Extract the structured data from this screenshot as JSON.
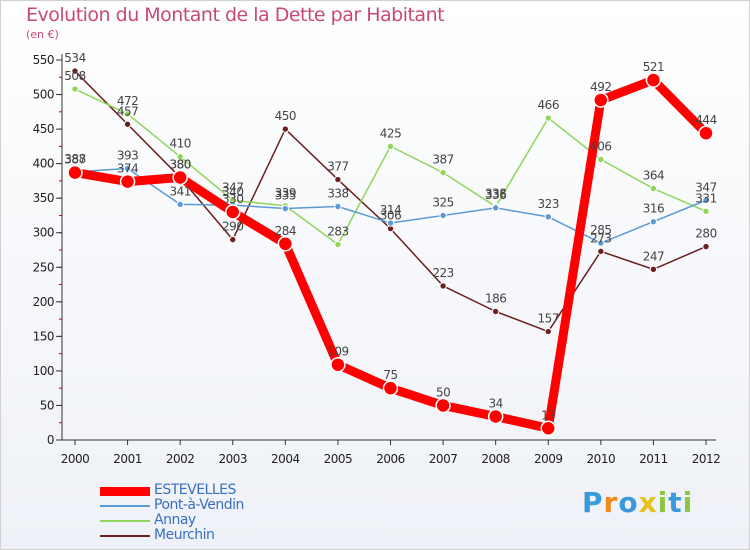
{
  "title": "Evolution du Montant de la Dette par Habitant",
  "unit": "(en €)",
  "logo": {
    "letters": [
      "P",
      "r",
      "o",
      "x",
      "i",
      "t",
      "i"
    ],
    "colors": [
      "#3a9ad9",
      "#f08a1c",
      "#3a9ad9",
      "#e8c21c",
      "#8cc63f",
      "#3a9ad9",
      "#8cc63f"
    ]
  },
  "chart_data": {
    "type": "line",
    "x": [
      "2000",
      "2001",
      "2002",
      "2003",
      "2004",
      "2005",
      "2006",
      "2007",
      "2008",
      "2009",
      "2010",
      "2011",
      "2012"
    ],
    "yticks": [
      "0",
      "50",
      "100",
      "150",
      "200",
      "250",
      "300",
      "350",
      "400",
      "450",
      "500",
      "550"
    ],
    "ylim": [
      0,
      550
    ],
    "grid": false,
    "legend_position": "bottom-left",
    "series": [
      {
        "name": "Meurchin",
        "color": "#6b1f1f",
        "values": [
          534,
          457,
          380,
          290,
          450,
          377,
          306,
          223,
          186,
          157,
          273,
          247,
          280
        ],
        "labels": [
          "534",
          "457",
          "380",
          "290",
          "450",
          "377",
          "306",
          "223",
          "186",
          "157",
          "273",
          "247",
          "280"
        ]
      },
      {
        "name": "Annay",
        "color": "#8fd65a",
        "values": [
          508,
          472,
          410,
          347,
          339,
          283,
          425,
          387,
          338,
          466,
          406,
          364,
          331
        ],
        "labels": [
          "508",
          "472",
          "410",
          "347",
          "339",
          "283",
          "425",
          "387",
          "338",
          "466",
          "406",
          "364",
          "331"
        ]
      },
      {
        "name": "Pont-à-Vendin",
        "color": "#5b9bd5",
        "values": [
          388,
          393,
          341,
          340,
          335,
          338,
          314,
          325,
          336,
          323,
          285,
          316,
          347
        ],
        "labels": [
          "388",
          "393",
          "341",
          "340",
          "335",
          "338",
          "314",
          "325",
          "336",
          "323",
          "285",
          "316",
          "347"
        ]
      },
      {
        "name": "ESTEVELLES",
        "color": "#ff0000",
        "values": [
          387,
          374,
          380,
          330,
          284,
          109,
          75,
          50,
          34,
          17,
          492,
          521,
          444
        ],
        "labels": [
          "387",
          "374",
          "380",
          "330",
          "284",
          "109",
          "75",
          "50",
          "34",
          "17",
          "492",
          "521",
          "444"
        ]
      }
    ],
    "legend": [
      {
        "name": "ESTEVELLES",
        "color": "#ff0000",
        "width": 9
      },
      {
        "name": "Pont-à-Vendin",
        "color": "#5b9bd5",
        "width": 2
      },
      {
        "name": "Annay",
        "color": "#8fd65a",
        "width": 2
      },
      {
        "name": "Meurchin",
        "color": "#6b1f1f",
        "width": 2
      }
    ]
  }
}
